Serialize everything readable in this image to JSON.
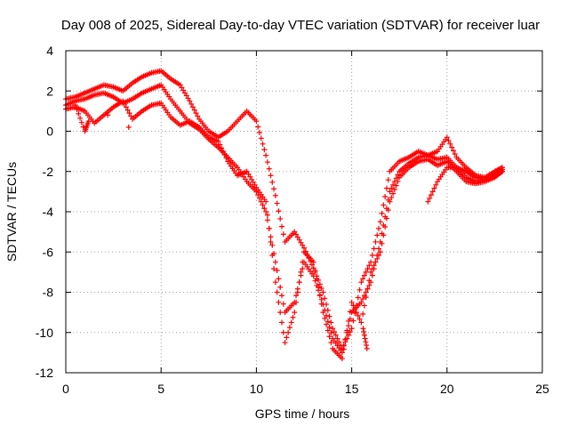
{
  "chart_data": {
    "type": "scatter",
    "title": "Day 008 of 2025, Sidereal Day-to-day VTEC variation (SDTVAR) for receiver luar",
    "xlabel": "GPS time / hours",
    "ylabel": "SDTVAR / TECUs",
    "xlim": [
      0,
      25
    ],
    "ylim": [
      -12,
      4
    ],
    "xticks": [
      0,
      5,
      10,
      15,
      20,
      25
    ],
    "yticks": [
      -12,
      -10,
      -8,
      -6,
      -4,
      -2,
      0,
      2,
      4
    ],
    "grid": true,
    "marker": "+",
    "color": "#ff0000",
    "series": [
      {
        "x": [
          0.0,
          0.5,
          1.0,
          1.5,
          2.0,
          2.5,
          3.0,
          3.5,
          4.0,
          4.5,
          5.0,
          5.5,
          6.0,
          6.5,
          7.0,
          7.5,
          8.0,
          8.5,
          9.0,
          9.5,
          10.0,
          10.5,
          11.0,
          11.5,
          12.0,
          12.5,
          13.0,
          13.5,
          14.0,
          14.5,
          15.0,
          15.5,
          16.0,
          16.5,
          17.0,
          17.5,
          18.0,
          18.5,
          19.0,
          19.5,
          20.0,
          20.5,
          21.0,
          21.5,
          22.0,
          22.5,
          22.9
        ],
        "y": [
          1.6,
          1.7,
          1.9,
          2.1,
          2.3,
          2.2,
          2.0,
          2.4,
          2.7,
          2.9,
          3.0,
          2.6,
          2.3,
          1.5,
          0.6,
          0.0,
          -0.3,
          0.0,
          0.5,
          1.0,
          0.5,
          -1.2,
          -3.2,
          -5.5,
          -5.0,
          -5.8,
          -6.8,
          -8.0,
          -9.8,
          -10.8,
          -9.8,
          -7.5,
          -6.5,
          -4.5,
          -2.0,
          -1.5,
          -1.3,
          -1.0,
          -1.2,
          -1.0,
          -0.3,
          -1.3,
          -1.8,
          -2.2,
          -2.3,
          -2.0,
          -1.8
        ]
      },
      {
        "x": [
          0.0,
          0.5,
          1.0,
          1.5,
          2.0,
          2.5,
          3.0,
          3.5,
          4.0,
          4.5,
          5.0,
          5.5,
          6.0,
          6.5,
          7.0,
          7.5,
          8.0,
          8.5,
          9.0,
          9.5,
          10.0,
          10.5,
          11.0,
          11.5,
          12.0,
          12.5,
          13.0,
          13.5,
          14.0,
          14.5,
          15.0,
          15.5,
          16.0,
          16.5,
          17.0,
          17.5,
          18.0,
          18.5,
          19.0,
          19.5,
          20.0,
          20.5,
          21.0,
          21.5,
          22.0,
          22.5,
          22.9
        ],
        "y": [
          1.3,
          1.5,
          1.6,
          1.8,
          1.9,
          1.7,
          1.4,
          1.6,
          1.9,
          2.1,
          2.3,
          1.6,
          1.0,
          0.4,
          0.1,
          -0.4,
          -0.8,
          -1.3,
          -1.8,
          -2.5,
          -3.0,
          -4.0,
          -6.5,
          -9.0,
          -8.5,
          -6.5,
          -7.2,
          -8.6,
          -10.3,
          -11.0,
          -9.0,
          -8.5,
          -7.5,
          -5.5,
          -3.0,
          -2.0,
          -1.6,
          -1.3,
          -1.2,
          -1.4,
          -1.3,
          -1.8,
          -2.3,
          -2.5,
          -2.4,
          -2.2,
          -1.9
        ]
      },
      {
        "x": [
          0.0,
          0.5,
          1.0,
          1.5,
          2.0,
          2.5,
          3.0,
          3.5,
          4.0,
          4.5,
          5.0,
          5.5,
          6.0,
          6.5,
          7.0,
          7.5,
          8.0,
          8.5,
          9.0,
          9.5,
          10.0,
          10.5,
          11.0,
          11.5,
          12.0,
          12.5,
          13.0,
          13.5,
          14.0,
          14.5,
          15.0,
          15.5,
          16.0,
          16.5,
          17.0,
          17.5,
          18.0,
          18.5,
          19.0,
          19.5,
          20.0,
          20.5,
          21.0,
          21.5,
          22.0,
          22.5,
          22.9
        ],
        "y": [
          1.1,
          1.2,
          1.0,
          0.4,
          0.8,
          1.2,
          1.5,
          0.6,
          1.0,
          1.3,
          1.4,
          0.7,
          0.3,
          0.5,
          0.2,
          -0.3,
          -0.5,
          -1.5,
          -2.2,
          -2.0,
          -2.8,
          -3.5,
          -7.5,
          -10.5,
          -9.0,
          -6.0,
          -6.5,
          -9.0,
          -10.8,
          -11.3,
          -8.5,
          -9.5,
          -7.0,
          -6.0,
          -3.5,
          -2.3,
          -1.8,
          -1.5,
          -1.4,
          -1.7,
          -1.5,
          -2.0,
          -2.5,
          -2.6,
          -2.5,
          -2.3,
          -2.0
        ]
      },
      {
        "x": [
          19.0,
          19.5,
          20.0,
          20.5,
          21.0,
          21.5,
          22.0,
          22.5,
          22.9
        ],
        "y": [
          -3.5,
          -2.5,
          -1.8,
          -1.8,
          -2.0,
          -2.3,
          -2.4,
          -2.2,
          -2.0
        ]
      },
      {
        "x": [
          0.5,
          1.0,
          1.2,
          2.2,
          3.3,
          15.6,
          15.8
        ],
        "y": [
          1.3,
          0.0,
          0.5,
          0.8,
          0.2,
          -9.8,
          -10.8
        ]
      }
    ]
  }
}
